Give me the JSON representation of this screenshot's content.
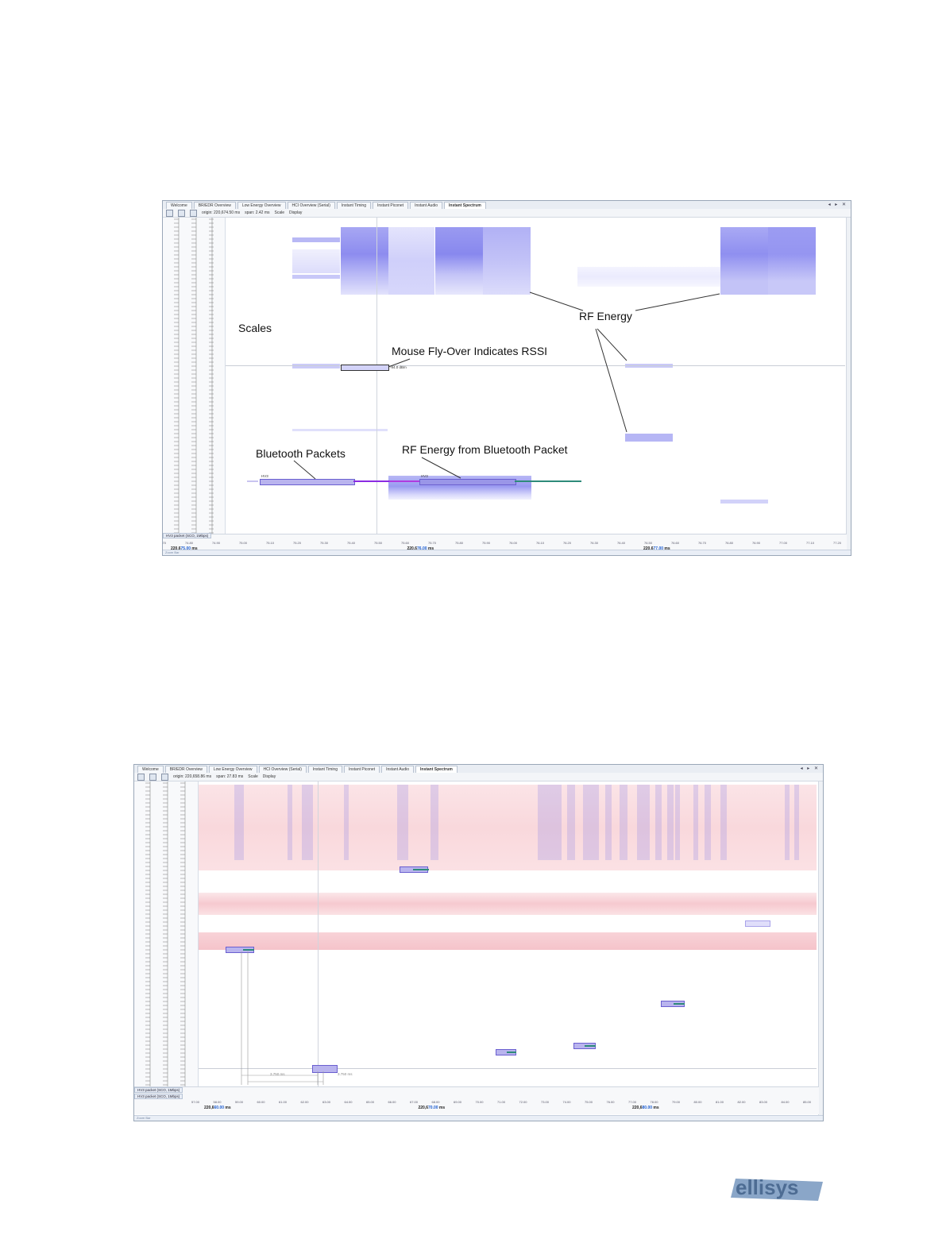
{
  "top": {
    "tabs": [
      "Welcome",
      "BR/EDR Overview",
      "Low Energy Overview",
      "HCI Overview (Serial)",
      "Instant Timing",
      "Instant Piconet",
      "Instant Audio",
      "Instant Spectrum"
    ],
    "toolbar": {
      "origin": "origin: 220,674.50 ms",
      "span": "span: 2.42 ms",
      "scale": "Scale",
      "display": "Display"
    },
    "window_controls": "◂ ▸ ✕",
    "callouts": {
      "scales": "Scales",
      "mouse": "Mouse Fly-Over Indicates RSSI",
      "rf_energy": "RF Energy",
      "bt_packets": "Bluetooth Packets",
      "rf_from_bt": "RF Energy from Bluetooth Packet"
    },
    "rssi_label": "-94.0 dBm",
    "packet_label": "HV3",
    "packet_row": "HV3 packet (SCO, 1Mbps)",
    "status": "Zoom Bar",
    "axis_ticks": [
      "74.70",
      "74.80",
      "74.90",
      "75.00",
      "75.10",
      "75.20",
      "75.30",
      "75.40",
      "75.50",
      "75.60",
      "75.70",
      "75.80",
      "75.90",
      "76.00",
      "76.10",
      "76.20",
      "76.30",
      "76.40",
      "76.50",
      "76.60",
      "76.70",
      "76.80",
      "76.90",
      "77.00",
      "77.10",
      "77.20"
    ],
    "axis_major": [
      {
        "pre": "220,6",
        "mid": "75.00",
        "unit": "ms"
      },
      {
        "pre": "220,6",
        "mid": "76.00",
        "unit": "ms"
      },
      {
        "pre": "220,6",
        "mid": "77.00",
        "unit": "ms"
      }
    ]
  },
  "bottom": {
    "tabs": [
      "Welcome",
      "BR/EDR Overview",
      "Low Energy Overview",
      "HCI Overview (Serial)",
      "Instant Timing",
      "Instant Piconet",
      "Instant Audio",
      "Instant Spectrum"
    ],
    "toolbar": {
      "origin": "origin: 220,658.86 ms",
      "span": "span: 27.83 ms",
      "scale": "Scale",
      "display": "Display"
    },
    "window_controls": "◂ ▸ ✕",
    "packet_rows": [
      "HV3 packet (SCO, 1Mbps)",
      "HV3 packet (SCO, 1Mbps)"
    ],
    "measure_labels": [
      "3.750 ms",
      "3.750 ms",
      "3,125 µs",
      "3,125 µs"
    ],
    "status": "Zoom Bar",
    "axis_ticks": [
      "57.00",
      "58.00",
      "59.00",
      "60.00",
      "61.00",
      "62.00",
      "63.00",
      "64.00",
      "65.00",
      "66.00",
      "67.00",
      "68.00",
      "69.00",
      "70.00",
      "71.00",
      "72.00",
      "73.00",
      "74.00",
      "75.00",
      "76.00",
      "77.00",
      "78.00",
      "79.00",
      "80.00",
      "81.00",
      "82.00",
      "83.00",
      "84.00",
      "85.00"
    ],
    "axis_major": [
      {
        "pre": "220,6",
        "mid": "60.00",
        "unit": "ms"
      },
      {
        "pre": "220,6",
        "mid": "70.00",
        "unit": "ms"
      },
      {
        "pre": "220,6",
        "mid": "80.00",
        "unit": "ms"
      }
    ]
  },
  "brand": {
    "logo_text": "ellisys"
  },
  "colors": {
    "energy": "#7b7cf0",
    "energy_light": "#c9c9fb",
    "wifi_band": "#f7c9cf",
    "packet_fill": "#b9b4ee",
    "packet_line": "#8a2be2",
    "trail": "#2e8b7a"
  }
}
